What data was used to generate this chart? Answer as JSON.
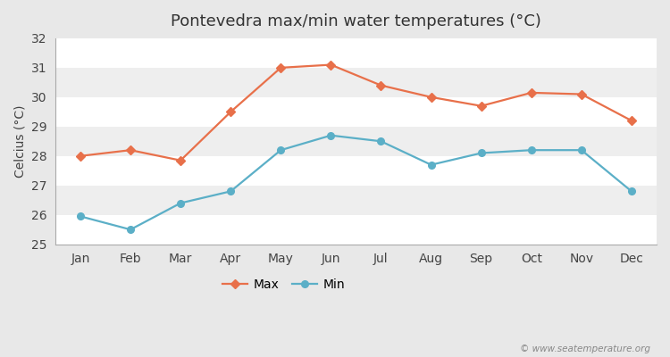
{
  "months": [
    "Jan",
    "Feb",
    "Mar",
    "Apr",
    "May",
    "Jun",
    "Jul",
    "Aug",
    "Sep",
    "Oct",
    "Nov",
    "Dec"
  ],
  "max_temps": [
    28.0,
    28.2,
    27.85,
    29.5,
    31.0,
    31.1,
    30.4,
    30.0,
    29.7,
    30.15,
    30.1,
    29.2
  ],
  "min_temps": [
    25.95,
    25.5,
    26.4,
    26.8,
    28.2,
    28.7,
    28.5,
    27.7,
    28.1,
    28.2,
    28.2,
    26.8
  ],
  "max_color": "#E8704A",
  "min_color": "#5BAFC7",
  "title": "Pontevedra max/min water temperatures (°C)",
  "ylabel": "Celcius (°C)",
  "ylim": [
    25,
    32
  ],
  "yticks": [
    25,
    26,
    27,
    28,
    29,
    30,
    31,
    32
  ],
  "outer_bg": "#E8E8E8",
  "band_light": "#EEEEEE",
  "band_dark": "#E0E0E0",
  "grid_color": "#FFFFFF",
  "watermark": "© www.seatemperature.org",
  "title_fontsize": 13,
  "label_fontsize": 10,
  "tick_fontsize": 10
}
